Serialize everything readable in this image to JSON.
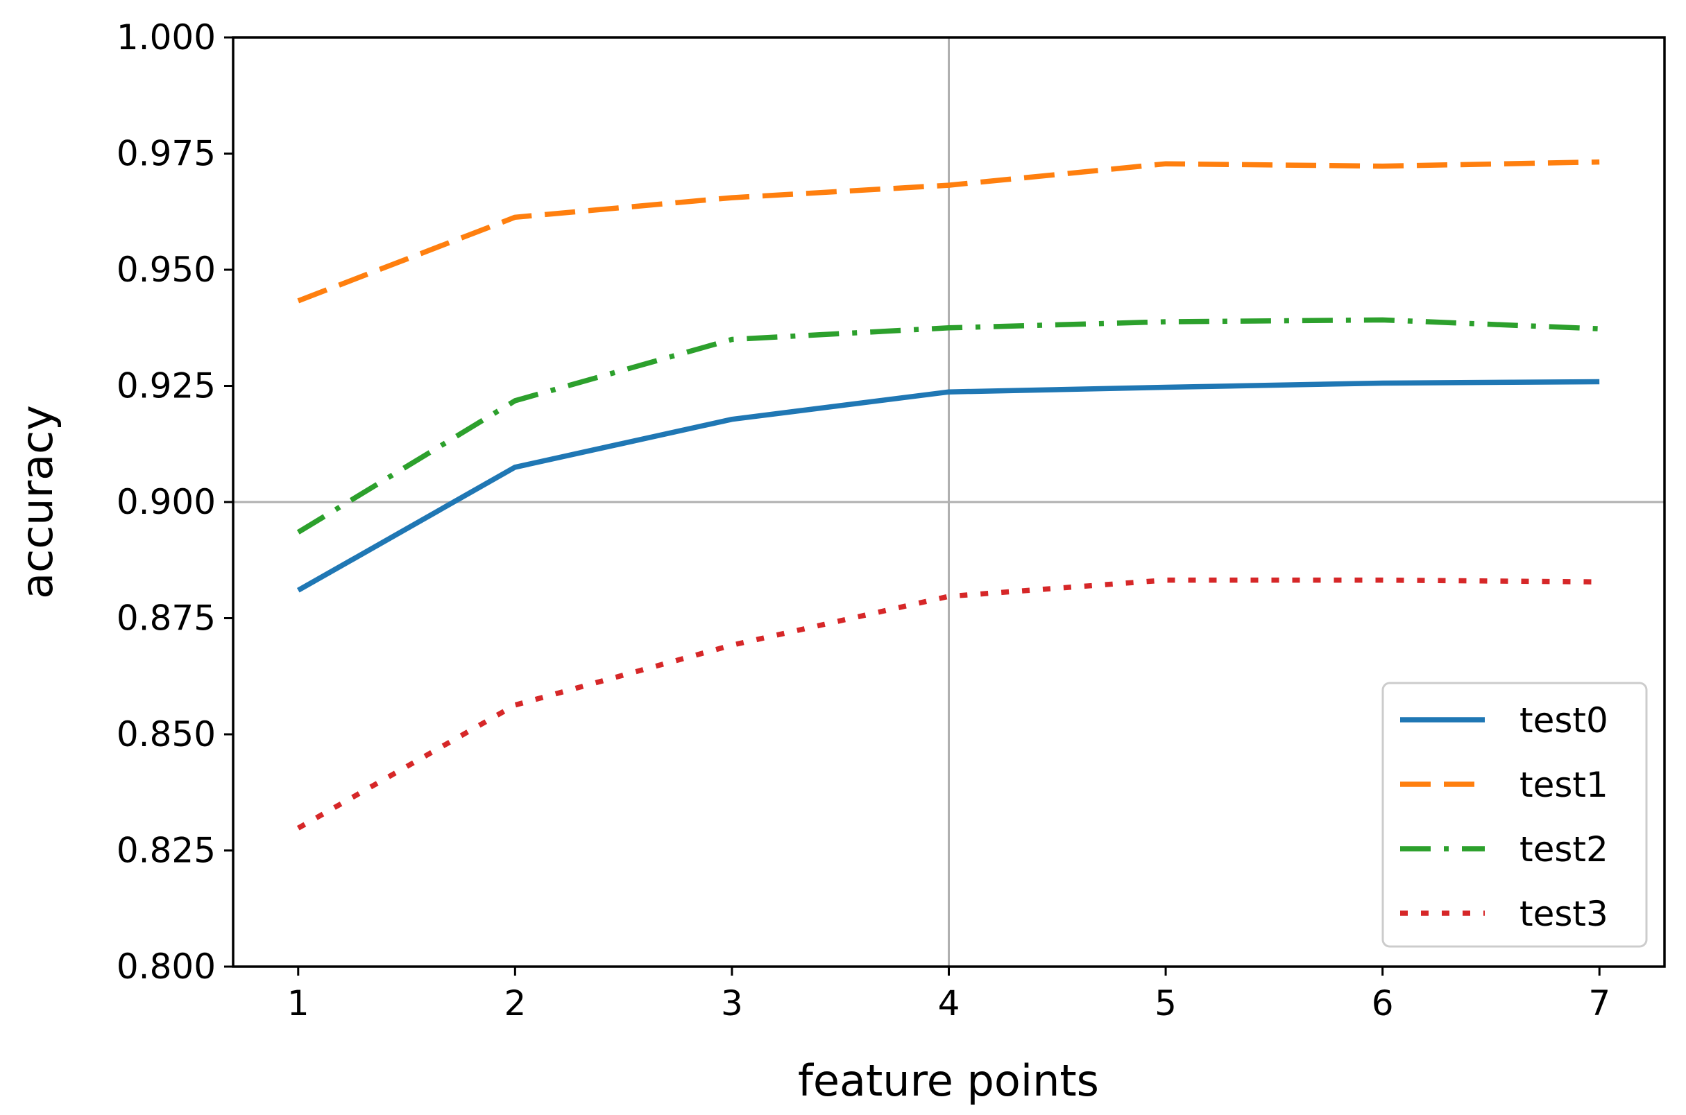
{
  "chart_data": {
    "type": "line",
    "xlabel": "feature points",
    "ylabel": "accuracy",
    "x": [
      1,
      2,
      3,
      4,
      5,
      6,
      7
    ],
    "xticks": [
      "1",
      "2",
      "3",
      "4",
      "5",
      "6",
      "7"
    ],
    "yticks": [
      "0.800",
      "0.825",
      "0.850",
      "0.875",
      "0.900",
      "0.925",
      "0.950",
      "0.975",
      "1.000"
    ],
    "ylim": [
      0.8,
      1.0
    ],
    "xlim": [
      0.7,
      7.3
    ],
    "grid": {
      "x": [
        4
      ],
      "y": [
        0.9
      ]
    },
    "legend_position": "lower right",
    "series": [
      {
        "name": "test0",
        "color": "#1f77b4",
        "style": "solid",
        "values": [
          0.881,
          0.9075,
          0.9178,
          0.9237,
          0.9247,
          0.9256,
          0.9259
        ]
      },
      {
        "name": "test1",
        "color": "#ff7f0e",
        "style": "dashed",
        "values": [
          0.9433,
          0.9613,
          0.9655,
          0.9682,
          0.9728,
          0.9723,
          0.9732
        ]
      },
      {
        "name": "test2",
        "color": "#2ca02c",
        "style": "dashdot",
        "values": [
          0.8935,
          0.9218,
          0.935,
          0.9375,
          0.9388,
          0.9392,
          0.9373
        ]
      },
      {
        "name": "test3",
        "color": "#d62728",
        "style": "dotted",
        "values": [
          0.8298,
          0.8563,
          0.8692,
          0.8797,
          0.8832,
          0.8832,
          0.8828
        ]
      }
    ]
  }
}
